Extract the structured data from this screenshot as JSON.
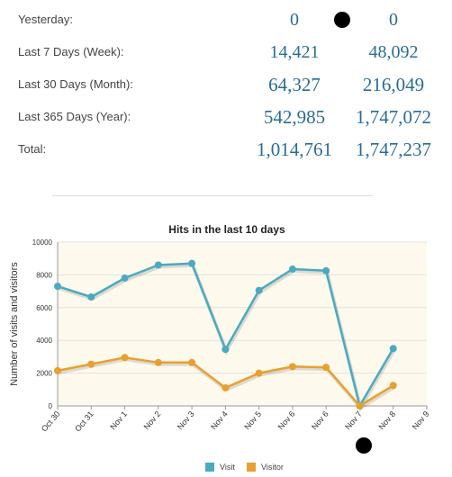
{
  "stats": {
    "rows": [
      {
        "label": "Yesterday:",
        "visits": "0",
        "visitors": "0"
      },
      {
        "label": "Last 7 Days (Week):",
        "visits": "14,421",
        "visitors": "48,092"
      },
      {
        "label": "Last 30 Days (Month):",
        "visits": "64,327",
        "visitors": "216,049"
      },
      {
        "label": "Last 365 Days (Year):",
        "visits": "542,985",
        "visitors": "1,747,072"
      },
      {
        "label": "Total:",
        "visits": "1,014,761",
        "visitors": "1,747,237"
      }
    ]
  },
  "chart_data": {
    "type": "line",
    "title": "Hits in the last 10 days",
    "ylabel": "Number of visits and visitors",
    "xlabel": "",
    "categories": [
      "Oct 30",
      "Oct 31",
      "Nov 1",
      "Nov 2",
      "Nov 3",
      "Nov 4",
      "Nov 5",
      "Nov 6",
      "Nov 6",
      "Nov 7",
      "Nov 8",
      "Nov 9"
    ],
    "ylim": [
      0,
      10000
    ],
    "yticks": [
      "0",
      "2000",
      "4000",
      "6000",
      "8000",
      "10000"
    ],
    "series": [
      {
        "name": "Visit",
        "color": "#4aaac2",
        "values": [
          7300,
          6650,
          7800,
          8600,
          8700,
          3450,
          7050,
          8350,
          8250,
          0,
          3500,
          null
        ]
      },
      {
        "name": "Visitor",
        "color": "#e8a030",
        "values": [
          2150,
          2550,
          2950,
          2650,
          2650,
          1100,
          2000,
          2400,
          2350,
          0,
          1250,
          null
        ]
      }
    ],
    "legend_position": "bottom-center",
    "grid": true
  }
}
